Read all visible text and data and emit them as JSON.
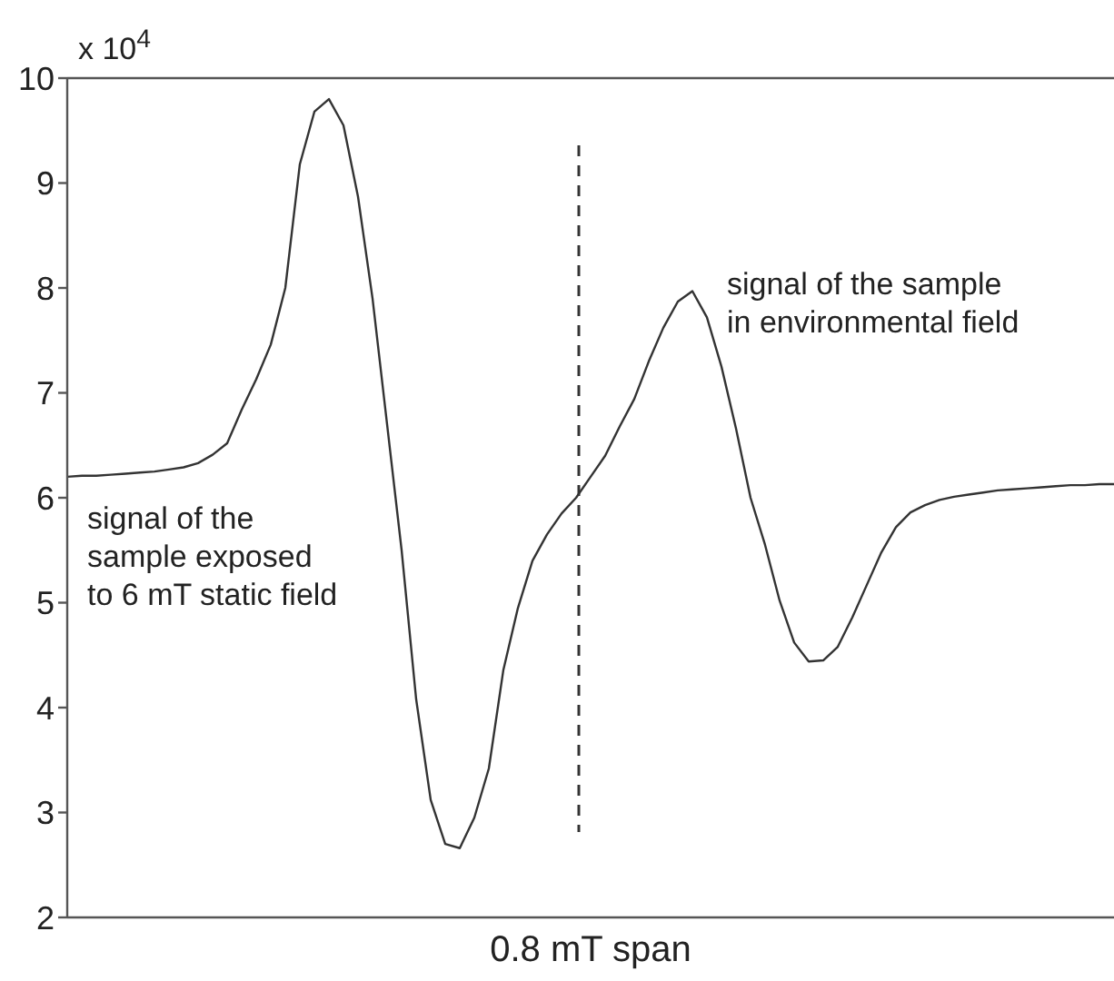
{
  "chart_data": {
    "type": "line",
    "xlabel": "0.8 mT span",
    "annotations": [
      "x 10$^{4}$",
      "signal of the\nsample exposed\nto 6 mT static field",
      "signal of the sample\nin environmental field"
    ],
    "categories": [
      null,
      null,
      null,
      null,
      null,
      null,
      null,
      null,
      null,
      null,
      null,
      null,
      null,
      null,
      null,
      null,
      null,
      null,
      null,
      null,
      null,
      null,
      null,
      null,
      null,
      null,
      null,
      null,
      null,
      null,
      null,
      null,
      null,
      null,
      null,
      null,
      null,
      null,
      null,
      null,
      null,
      null,
      null,
      null,
      null,
      null,
      null,
      null,
      null,
      null,
      null,
      null,
      null,
      null,
      null,
      null,
      null,
      null,
      null,
      null,
      null,
      null,
      null,
      null,
      null,
      null,
      null,
      null,
      null,
      null,
      null,
      null,
      null
    ],
    "ylim": [
      2,
      10
    ],
    "yticks": [
      2,
      3,
      4,
      5,
      6,
      7,
      8,
      9,
      10
    ],
    "tick_labels": "y",
    "marker": "none",
    "line_style": "solid",
    "series": [
      {
        "color": "#333333",
        "values": [
          6.2,
          6.21,
          6.21,
          6.22,
          6.23,
          6.24,
          6.25,
          6.27,
          6.29,
          6.33,
          6.41,
          6.52,
          6.84,
          7.13,
          7.46,
          8.0,
          9.18,
          9.68,
          9.8,
          9.55,
          8.87,
          7.9,
          6.7,
          5.5,
          4.08,
          3.12,
          2.7,
          2.66,
          2.95,
          3.42,
          4.36,
          4.95,
          5.4,
          5.65,
          5.85,
          6.0,
          6.2,
          6.4,
          6.68,
          6.94,
          7.3,
          7.62,
          7.87,
          7.97,
          7.72,
          7.25,
          6.66,
          6.0,
          5.55,
          5.02,
          4.62,
          4.44,
          4.45,
          4.58,
          4.86,
          5.17,
          5.48,
          5.72,
          5.86,
          5.93,
          5.98,
          6.01,
          6.03,
          6.05,
          6.07,
          6.08,
          6.09,
          6.1,
          6.11,
          6.12,
          6.12,
          6.13,
          6.13
        ]
      }
    ]
  }
}
